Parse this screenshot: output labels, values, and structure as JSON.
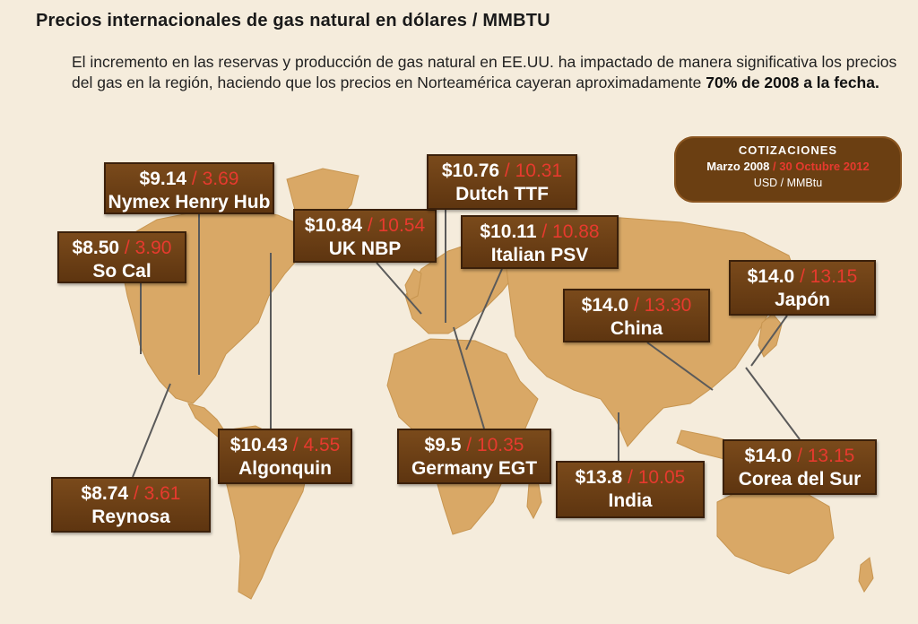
{
  "header": {
    "title": "Precios internacionales de gas natural en dólares / MMBTU",
    "intro_text": "El incremento en las reservas y producción de gas natural en EE.UU. ha impactado de manera significativa los precios del gas en la región, haciendo que los precios en Norteamérica cayeran aproximadamente ",
    "intro_highlight": "70%",
    "intro_end": " de 2008 a la fecha."
  },
  "legend": {
    "title": "COTIZACIONES",
    "period_1": "Marzo 2008",
    "separator": " / ",
    "period_2": "30 Octubre 2012",
    "units": "USD / MMBtu"
  },
  "colors": {
    "background": "#f5ecdc",
    "land": "#d9a866",
    "box": "#6b3f12",
    "price_2012": "#e63a2e"
  },
  "markers": [
    {
      "id": "nymex",
      "price_2008": "$9.14",
      "price_2012": "3.69",
      "name": "Nymex Henry Hub"
    },
    {
      "id": "socal",
      "price_2008": "$8.50",
      "price_2012": "3.90",
      "name": "So Cal"
    },
    {
      "id": "reynosa",
      "price_2008": "$8.74",
      "price_2012": "3.61",
      "name": "Reynosa"
    },
    {
      "id": "algonquin",
      "price_2008": "$10.43",
      "price_2012": "4.55",
      "name": "Algonquin"
    },
    {
      "id": "uknbp",
      "price_2008": "$10.84",
      "price_2012": "10.54",
      "name": "UK NBP"
    },
    {
      "id": "dutch",
      "price_2008": "$10.76",
      "price_2012": "10.31",
      "name": "Dutch TTF"
    },
    {
      "id": "italian",
      "price_2008": "$10.11",
      "price_2012": "10.88",
      "name": "Italian PSV"
    },
    {
      "id": "germany",
      "price_2008": "$9.5",
      "price_2012": "10.35",
      "name": "Germany EGT"
    },
    {
      "id": "china",
      "price_2008": "$14.0",
      "price_2012": "13.30",
      "name": "China"
    },
    {
      "id": "japon",
      "price_2008": "$14.0",
      "price_2012": "13.15",
      "name": "Japón"
    },
    {
      "id": "india",
      "price_2008": "$13.8",
      "price_2012": "10.05",
      "name": "India"
    },
    {
      "id": "corea",
      "price_2008": "$14.0",
      "price_2012": "13.15",
      "name": "Corea del Sur"
    }
  ]
}
